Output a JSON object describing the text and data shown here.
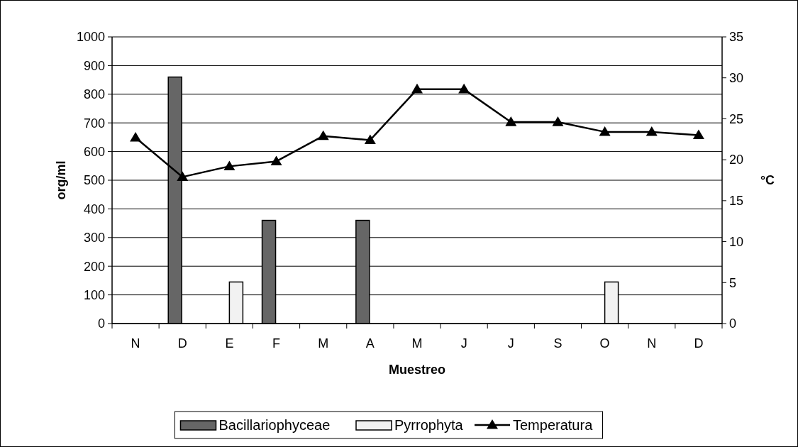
{
  "chart_data": {
    "type": "bar",
    "categories": [
      "N",
      "D",
      "E",
      "F",
      "M",
      "A",
      "M",
      "J",
      "J",
      "S",
      "O",
      "N",
      "D"
    ],
    "xlabel": "Muestreo",
    "ylabel": "org/ml",
    "y2label": "°C",
    "ylim": [
      0,
      1000
    ],
    "yticks": [
      0,
      100,
      200,
      300,
      400,
      500,
      600,
      700,
      800,
      900,
      1000
    ],
    "y2lim": [
      0,
      35
    ],
    "y2ticks": [
      0,
      5,
      10,
      15,
      20,
      25,
      30,
      35
    ],
    "grid": "y",
    "legend": "bottom",
    "series": [
      {
        "name": "Bacillariophyceae",
        "color": "#666666",
        "values": [
          0,
          860,
          0,
          360,
          0,
          360,
          0,
          0,
          0,
          0,
          0,
          0,
          0
        ]
      },
      {
        "name": "Pyrrophyta",
        "color": "#f2f2f2",
        "values": [
          0,
          0,
          145,
          0,
          0,
          0,
          0,
          0,
          0,
          0,
          145,
          0,
          0
        ]
      },
      {
        "name": "Temperatura",
        "type": "line",
        "axis": "y2",
        "color": "#000000",
        "marker": "triangle",
        "line_style": "solid",
        "values": [
          22.7,
          17.9,
          19.2,
          19.8,
          22.9,
          22.4,
          28.6,
          28.6,
          24.6,
          24.6,
          23.4,
          23.4,
          23.0
        ]
      }
    ]
  }
}
